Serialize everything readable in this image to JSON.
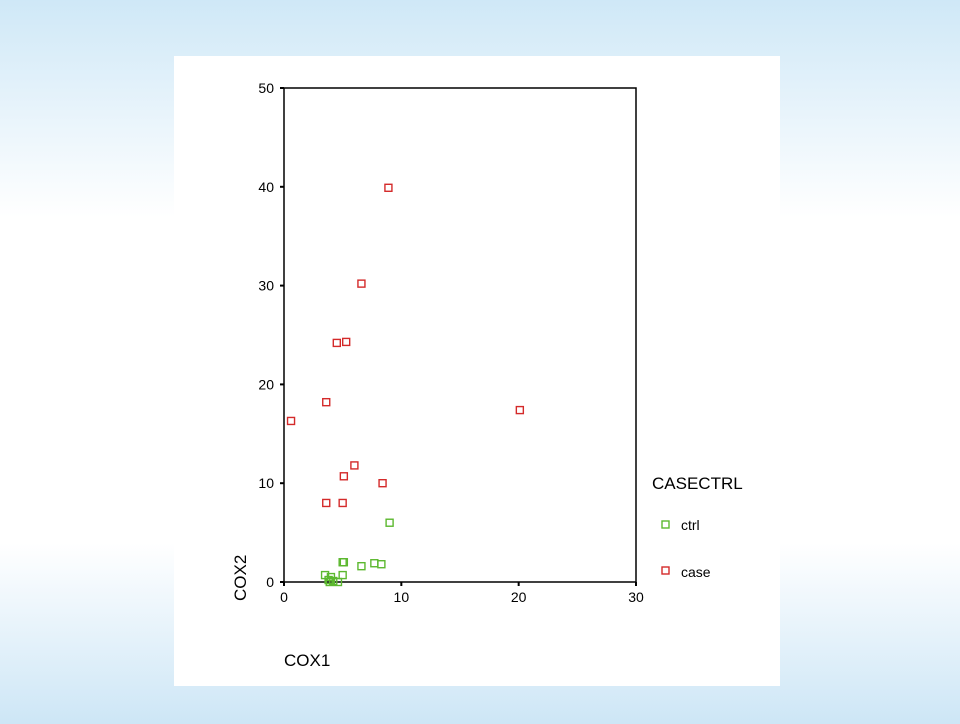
{
  "chart_data": {
    "type": "scatter",
    "title": "",
    "xlabel": "COX1",
    "ylabel": "COX2",
    "xlim": [
      0,
      30
    ],
    "ylim": [
      0,
      50
    ],
    "xticks": [
      "0",
      "10",
      "20",
      "30"
    ],
    "yticks": [
      "0",
      "10",
      "20",
      "30",
      "40",
      "50"
    ],
    "legend": {
      "title": "CASECTRL",
      "placement": "right"
    },
    "series": [
      {
        "name": "ctrl",
        "color": "#5cb82f",
        "marker": "square-open",
        "points": [
          [
            3.5,
            0.7
          ],
          [
            3.8,
            0.2
          ],
          [
            4.0,
            0.5
          ],
          [
            3.9,
            0.0
          ],
          [
            4.2,
            0.1
          ],
          [
            4.6,
            0.0
          ],
          [
            5.0,
            2.0
          ],
          [
            5.1,
            2.0
          ],
          [
            5.0,
            0.7
          ],
          [
            6.6,
            1.6
          ],
          [
            7.7,
            1.9
          ],
          [
            8.3,
            1.8
          ],
          [
            9.0,
            6.0
          ]
        ]
      },
      {
        "name": "case",
        "color": "#d42a2a",
        "marker": "square-open",
        "points": [
          [
            0.6,
            16.3
          ],
          [
            3.6,
            18.2
          ],
          [
            3.6,
            8.0
          ],
          [
            5.0,
            8.0
          ],
          [
            5.1,
            10.7
          ],
          [
            6.0,
            11.8
          ],
          [
            8.4,
            10.0
          ],
          [
            4.5,
            24.2
          ],
          [
            5.3,
            24.3
          ],
          [
            6.6,
            30.2
          ],
          [
            8.9,
            39.9
          ],
          [
            20.1,
            17.4
          ]
        ]
      }
    ]
  }
}
